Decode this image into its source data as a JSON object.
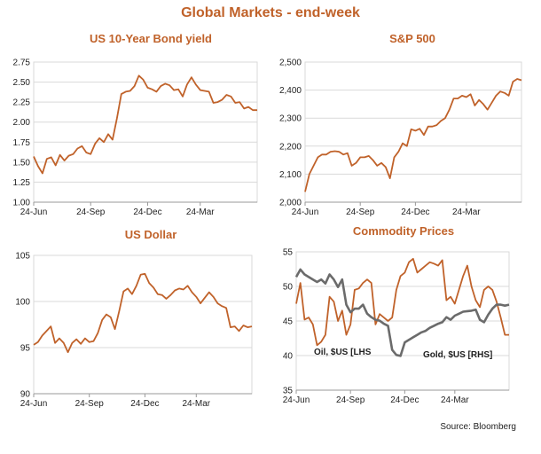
{
  "main_title": "Global Markets - end-week",
  "source": "Source: Bloomberg",
  "colors": {
    "title": "#c0622a",
    "series_primary": "#c0622a",
    "series_secondary": "#6b6b6b",
    "grid": "#d9d9d9",
    "axis": "#999999"
  },
  "chart_data": [
    {
      "id": "bond",
      "type": "line",
      "title": "US 10-Year Bond yield",
      "ylim": [
        1.0,
        2.75
      ],
      "yticks": [
        "2.75",
        "2.50",
        "2.25",
        "2.00",
        "1.75",
        "1.50",
        "1.25",
        "1.00"
      ],
      "yticks_values": [
        2.75,
        2.5,
        2.25,
        2.0,
        1.75,
        1.5,
        1.25,
        1.0
      ],
      "xtick_labels": [
        "24-Jun",
        "24-Sep",
        "24-Dec",
        "24-Mar"
      ],
      "xtick_index": [
        0,
        13,
        26,
        38
      ],
      "series": [
        {
          "name": "US 10-Year yield",
          "values": [
            1.57,
            1.45,
            1.36,
            1.54,
            1.56,
            1.46,
            1.59,
            1.52,
            1.58,
            1.6,
            1.67,
            1.7,
            1.62,
            1.6,
            1.73,
            1.8,
            1.75,
            1.85,
            1.78,
            2.05,
            2.35,
            2.38,
            2.39,
            2.45,
            2.58,
            2.53,
            2.43,
            2.41,
            2.38,
            2.45,
            2.48,
            2.46,
            2.4,
            2.41,
            2.32,
            2.47,
            2.56,
            2.47,
            2.4,
            2.39,
            2.38,
            2.24,
            2.25,
            2.28,
            2.34,
            2.32,
            2.24,
            2.25,
            2.17,
            2.19,
            2.15,
            2.15
          ]
        }
      ]
    },
    {
      "id": "sp500",
      "type": "line",
      "title": "S&P 500",
      "ylim": [
        2000,
        2500
      ],
      "yticks": [
        "2,500",
        "2,400",
        "2,300",
        "2,200",
        "2,100",
        "2,000"
      ],
      "yticks_values": [
        2500,
        2400,
        2300,
        2200,
        2100,
        2000
      ],
      "xtick_labels": [
        "24-Jun",
        "24-Sep",
        "24-Dec",
        "24-Mar"
      ],
      "xtick_index": [
        0,
        13,
        26,
        38
      ],
      "series": [
        {
          "name": "S&P 500",
          "values": [
            2037,
            2100,
            2130,
            2160,
            2170,
            2170,
            2180,
            2182,
            2180,
            2170,
            2175,
            2130,
            2140,
            2160,
            2160,
            2165,
            2150,
            2130,
            2140,
            2125,
            2085,
            2160,
            2180,
            2210,
            2200,
            2260,
            2255,
            2262,
            2240,
            2270,
            2270,
            2275,
            2290,
            2300,
            2330,
            2370,
            2370,
            2380,
            2375,
            2385,
            2345,
            2365,
            2350,
            2330,
            2355,
            2380,
            2395,
            2390,
            2380,
            2430,
            2440,
            2435
          ]
        }
      ]
    },
    {
      "id": "usd",
      "type": "line",
      "title": "US Dollar",
      "ylim": [
        90,
        105
      ],
      "yticks": [
        "105",
        "100",
        "95",
        "90"
      ],
      "yticks_values": [
        105,
        100,
        95,
        90
      ],
      "xtick_labels": [
        "24-Jun",
        "24-Sep",
        "24-Dec",
        "24-Mar"
      ],
      "xtick_index": [
        0,
        13,
        26,
        38
      ],
      "series": [
        {
          "name": "US Dollar Index",
          "values": [
            95.3,
            95.6,
            96.3,
            96.8,
            97.3,
            95.5,
            96.0,
            95.5,
            94.5,
            95.5,
            95.9,
            95.4,
            96.0,
            95.6,
            95.7,
            96.6,
            98.0,
            98.6,
            98.3,
            97.0,
            99.0,
            101.1,
            101.4,
            100.8,
            101.7,
            102.9,
            103.0,
            102.0,
            101.5,
            100.8,
            100.7,
            100.3,
            100.7,
            101.2,
            101.4,
            101.3,
            101.7,
            101.0,
            100.5,
            99.8,
            100.4,
            101.0,
            100.5,
            99.8,
            99.5,
            99.3,
            97.2,
            97.3,
            96.8,
            97.4,
            97.2,
            97.3
          ]
        }
      ]
    },
    {
      "id": "commodities",
      "type": "line",
      "title": "Commodity Prices",
      "ylim": [
        35,
        55
      ],
      "yticks": [
        "55",
        "50",
        "45",
        "40",
        "35"
      ],
      "yticks_values": [
        55,
        50,
        45,
        40,
        35
      ],
      "xtick_labels": [
        "24-Jun",
        "24-Sep",
        "24-Dec",
        "24-Mar"
      ],
      "xtick_index": [
        0,
        13,
        26,
        38
      ],
      "annotations": [
        "Oil, $US [LHS",
        "Gold, $US [RHS]"
      ],
      "series": [
        {
          "name": "Oil, $US [LHS",
          "axis": "left",
          "values": [
            47.5,
            50.5,
            45.2,
            45.5,
            44.5,
            41.5,
            42.0,
            43.0,
            48.5,
            47.8,
            45.0,
            46.5,
            43.0,
            44.5,
            49.5,
            49.7,
            50.5,
            51.0,
            50.5,
            44.5,
            46.0,
            45.5,
            45.0,
            45.5,
            49.5,
            51.5,
            52.0,
            53.5,
            54.0,
            52.0,
            52.5,
            53.0,
            53.5,
            53.3,
            53.0,
            53.8,
            48.0,
            48.5,
            47.5,
            49.5,
            51.5,
            53.0,
            50.0,
            48.0,
            47.0,
            49.5,
            50.0,
            49.5,
            47.8,
            45.5,
            43.0,
            43.0
          ]
        },
        {
          "name": "Gold, $US [RHS]",
          "axis": "right",
          "values": [
            1325,
            1340,
            1330,
            1325,
            1320,
            1315,
            1320,
            1312,
            1330,
            1320,
            1305,
            1320,
            1270,
            1255,
            1262,
            1262,
            1270,
            1252,
            1245,
            1240,
            1238,
            1232,
            1228,
            1180,
            1170,
            1168,
            1195,
            1200,
            1205,
            1210,
            1215,
            1218,
            1224,
            1228,
            1232,
            1235,
            1245,
            1240,
            1248,
            1252,
            1256,
            1257,
            1258,
            1260,
            1240,
            1235,
            1250,
            1262,
            1270,
            1270,
            1268,
            1270
          ]
        }
      ]
    }
  ]
}
